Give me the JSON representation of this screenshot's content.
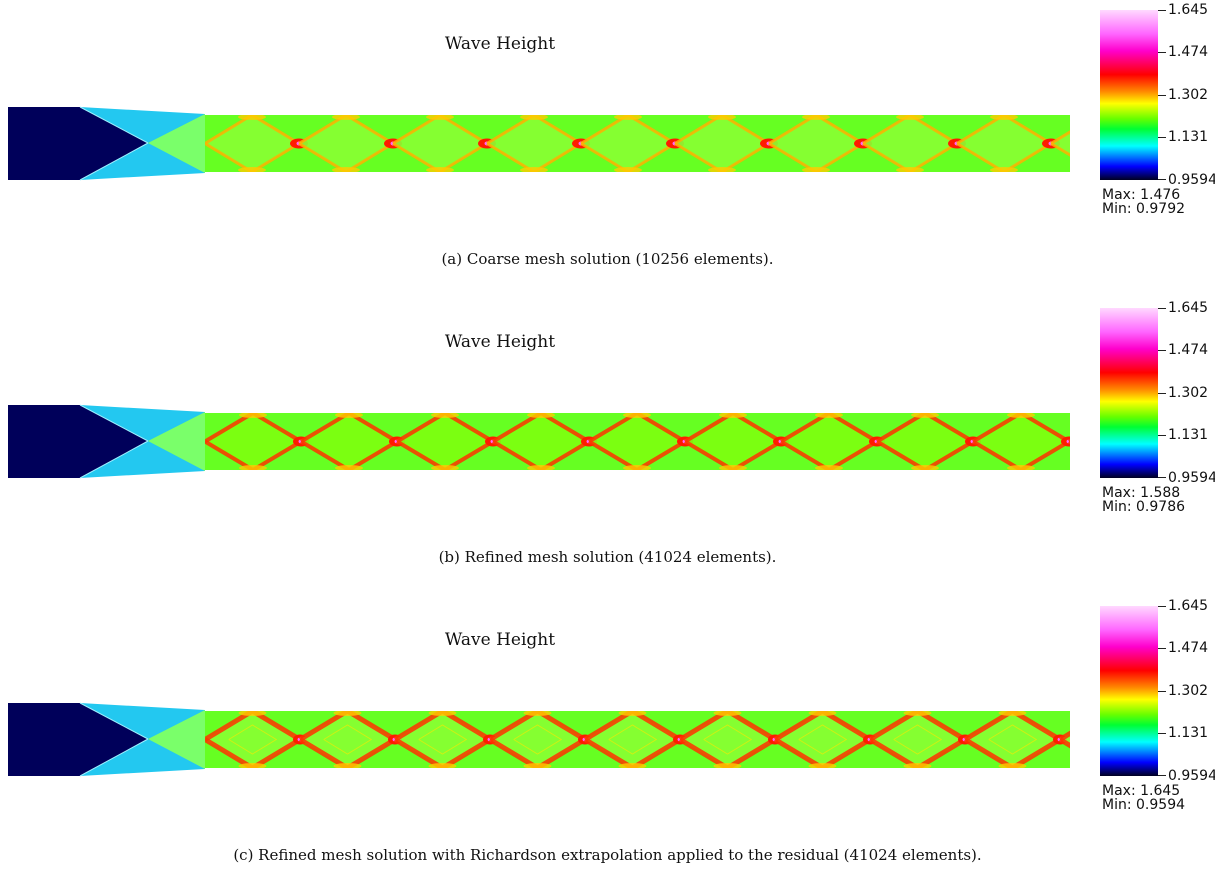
{
  "colorbar": {
    "ticks": [
      "1.645",
      "1.474",
      "1.302",
      "1.131",
      "0.9594"
    ],
    "max_label": "Max:",
    "min_label": "Min:"
  },
  "panels": [
    {
      "title": "Wave Height",
      "max": "1.476",
      "min": "0.9792",
      "caption": "(a)  Coarse mesh solution (10256 elements)."
    },
    {
      "title": "Wave Height",
      "max": "1.588",
      "min": "0.9786",
      "caption": "(b)  Refined mesh solution (41024 elements)."
    },
    {
      "title": "Wave Height",
      "max": "1.645",
      "min": "0.9594",
      "caption": "(c)  Refined mesh solution with Richardson extrapolation applied to the residual (41024 elements)."
    }
  ]
}
